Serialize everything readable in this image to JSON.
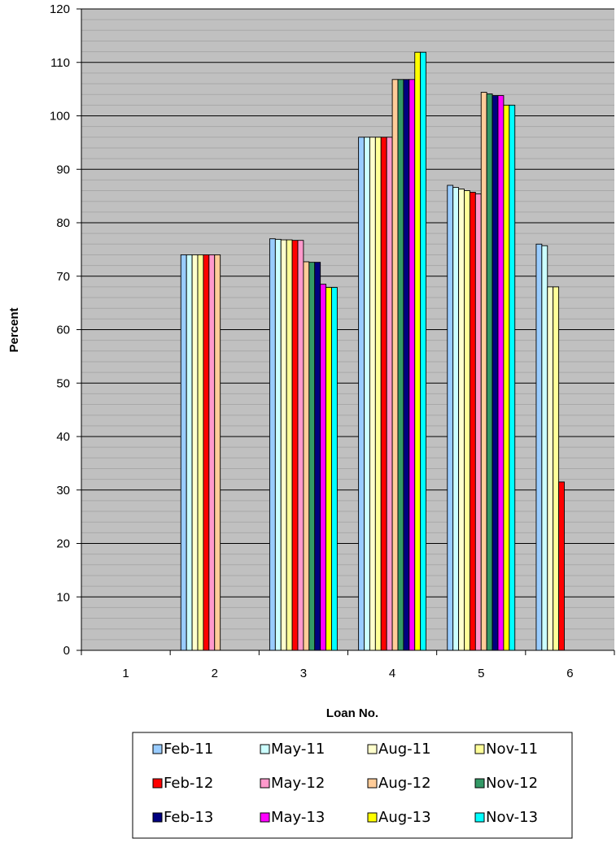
{
  "chart_data": {
    "type": "bar",
    "xlabel": "Loan No.",
    "ylabel": "Percent",
    "ylim": [
      0,
      120
    ],
    "ytick_step": 10,
    "minor_grid_step": 2,
    "grid": true,
    "plot_background": "#c0c0c0",
    "legend_position": "bottom",
    "categories": [
      "1",
      "2",
      "3",
      "4",
      "5",
      "6"
    ],
    "series": [
      {
        "name": "Feb-11",
        "color": "#99ccff",
        "values": [
          null,
          74,
          77,
          96,
          87,
          76
        ]
      },
      {
        "name": "May-11",
        "color": "#ccffff",
        "values": [
          null,
          74,
          76.9,
          96,
          86.6,
          75.7
        ]
      },
      {
        "name": "Aug-11",
        "color": "#ffffcc",
        "values": [
          null,
          74,
          76.8,
          96,
          86.3,
          68
        ]
      },
      {
        "name": "Nov-11",
        "color": "#ffff99",
        "values": [
          null,
          74,
          76.8,
          96,
          86,
          68
        ]
      },
      {
        "name": "Feb-12",
        "color": "#ff0000",
        "values": [
          null,
          74,
          76.7,
          96,
          85.7,
          31.5
        ]
      },
      {
        "name": "May-12",
        "color": "#ff99cc",
        "values": [
          null,
          74,
          76.7,
          96,
          85.4,
          null
        ]
      },
      {
        "name": "Aug-12",
        "color": "#ffcc99",
        "values": [
          null,
          74,
          72.7,
          106.8,
          104.4,
          null
        ]
      },
      {
        "name": "Nov-12",
        "color": "#339966",
        "values": [
          null,
          null,
          72.6,
          106.8,
          104.1,
          null
        ]
      },
      {
        "name": "Feb-13",
        "color": "#000080",
        "values": [
          null,
          null,
          72.6,
          106.8,
          103.8,
          null
        ]
      },
      {
        "name": "May-13",
        "color": "#ff00ff",
        "values": [
          null,
          null,
          68.5,
          106.8,
          103.8,
          null
        ]
      },
      {
        "name": "Aug-13",
        "color": "#ffff00",
        "values": [
          null,
          null,
          67.9,
          111.9,
          102,
          null
        ]
      },
      {
        "name": "Nov-13",
        "color": "#00ffff",
        "values": [
          null,
          null,
          67.9,
          111.9,
          102,
          null
        ]
      }
    ]
  }
}
